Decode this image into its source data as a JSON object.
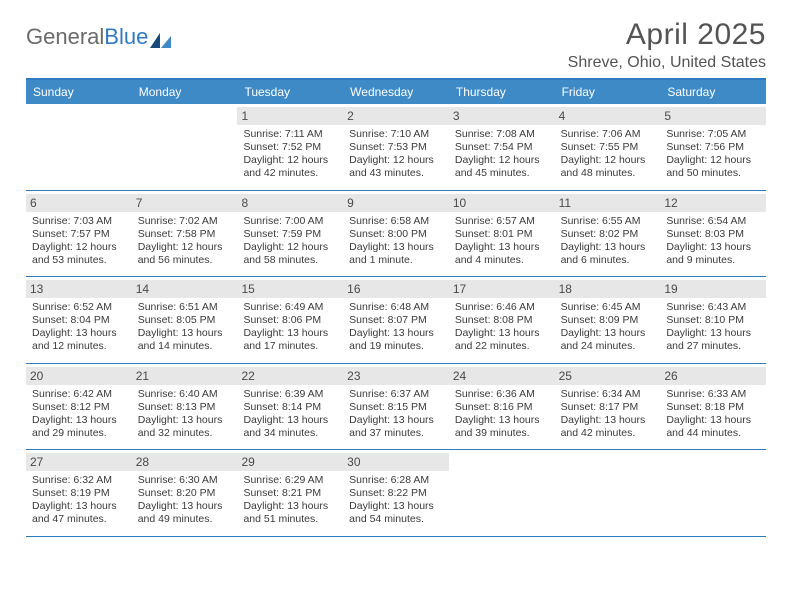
{
  "logo": {
    "part1": "General",
    "part2": "Blue"
  },
  "title": "April 2025",
  "location": "Shreve, Ohio, United States",
  "colors": {
    "header_bg": "#3d8ac7",
    "header_border": "#2f7bbf",
    "daynum_bg": "#e7e7e7",
    "text": "#3b3b3b",
    "title_text": "#545454",
    "logo_gray": "#6a6a6a",
    "logo_blue": "#2f7bbf"
  },
  "day_labels": [
    "Sunday",
    "Monday",
    "Tuesday",
    "Wednesday",
    "Thursday",
    "Friday",
    "Saturday"
  ],
  "weeks": [
    [
      null,
      null,
      {
        "n": "1",
        "sr": "7:11 AM",
        "ss": "7:52 PM",
        "dl": "12 hours and 42 minutes."
      },
      {
        "n": "2",
        "sr": "7:10 AM",
        "ss": "7:53 PM",
        "dl": "12 hours and 43 minutes."
      },
      {
        "n": "3",
        "sr": "7:08 AM",
        "ss": "7:54 PM",
        "dl": "12 hours and 45 minutes."
      },
      {
        "n": "4",
        "sr": "7:06 AM",
        "ss": "7:55 PM",
        "dl": "12 hours and 48 minutes."
      },
      {
        "n": "5",
        "sr": "7:05 AM",
        "ss": "7:56 PM",
        "dl": "12 hours and 50 minutes."
      }
    ],
    [
      {
        "n": "6",
        "sr": "7:03 AM",
        "ss": "7:57 PM",
        "dl": "12 hours and 53 minutes."
      },
      {
        "n": "7",
        "sr": "7:02 AM",
        "ss": "7:58 PM",
        "dl": "12 hours and 56 minutes."
      },
      {
        "n": "8",
        "sr": "7:00 AM",
        "ss": "7:59 PM",
        "dl": "12 hours and 58 minutes."
      },
      {
        "n": "9",
        "sr": "6:58 AM",
        "ss": "8:00 PM",
        "dl": "13 hours and 1 minute."
      },
      {
        "n": "10",
        "sr": "6:57 AM",
        "ss": "8:01 PM",
        "dl": "13 hours and 4 minutes."
      },
      {
        "n": "11",
        "sr": "6:55 AM",
        "ss": "8:02 PM",
        "dl": "13 hours and 6 minutes."
      },
      {
        "n": "12",
        "sr": "6:54 AM",
        "ss": "8:03 PM",
        "dl": "13 hours and 9 minutes."
      }
    ],
    [
      {
        "n": "13",
        "sr": "6:52 AM",
        "ss": "8:04 PM",
        "dl": "13 hours and 12 minutes."
      },
      {
        "n": "14",
        "sr": "6:51 AM",
        "ss": "8:05 PM",
        "dl": "13 hours and 14 minutes."
      },
      {
        "n": "15",
        "sr": "6:49 AM",
        "ss": "8:06 PM",
        "dl": "13 hours and 17 minutes."
      },
      {
        "n": "16",
        "sr": "6:48 AM",
        "ss": "8:07 PM",
        "dl": "13 hours and 19 minutes."
      },
      {
        "n": "17",
        "sr": "6:46 AM",
        "ss": "8:08 PM",
        "dl": "13 hours and 22 minutes."
      },
      {
        "n": "18",
        "sr": "6:45 AM",
        "ss": "8:09 PM",
        "dl": "13 hours and 24 minutes."
      },
      {
        "n": "19",
        "sr": "6:43 AM",
        "ss": "8:10 PM",
        "dl": "13 hours and 27 minutes."
      }
    ],
    [
      {
        "n": "20",
        "sr": "6:42 AM",
        "ss": "8:12 PM",
        "dl": "13 hours and 29 minutes."
      },
      {
        "n": "21",
        "sr": "6:40 AM",
        "ss": "8:13 PM",
        "dl": "13 hours and 32 minutes."
      },
      {
        "n": "22",
        "sr": "6:39 AM",
        "ss": "8:14 PM",
        "dl": "13 hours and 34 minutes."
      },
      {
        "n": "23",
        "sr": "6:37 AM",
        "ss": "8:15 PM",
        "dl": "13 hours and 37 minutes."
      },
      {
        "n": "24",
        "sr": "6:36 AM",
        "ss": "8:16 PM",
        "dl": "13 hours and 39 minutes."
      },
      {
        "n": "25",
        "sr": "6:34 AM",
        "ss": "8:17 PM",
        "dl": "13 hours and 42 minutes."
      },
      {
        "n": "26",
        "sr": "6:33 AM",
        "ss": "8:18 PM",
        "dl": "13 hours and 44 minutes."
      }
    ],
    [
      {
        "n": "27",
        "sr": "6:32 AM",
        "ss": "8:19 PM",
        "dl": "13 hours and 47 minutes."
      },
      {
        "n": "28",
        "sr": "6:30 AM",
        "ss": "8:20 PM",
        "dl": "13 hours and 49 minutes."
      },
      {
        "n": "29",
        "sr": "6:29 AM",
        "ss": "8:21 PM",
        "dl": "13 hours and 51 minutes."
      },
      {
        "n": "30",
        "sr": "6:28 AM",
        "ss": "8:22 PM",
        "dl": "13 hours and 54 minutes."
      },
      null,
      null,
      null
    ]
  ],
  "labels": {
    "sunrise": "Sunrise: ",
    "sunset": "Sunset: ",
    "daylight": "Daylight: "
  }
}
